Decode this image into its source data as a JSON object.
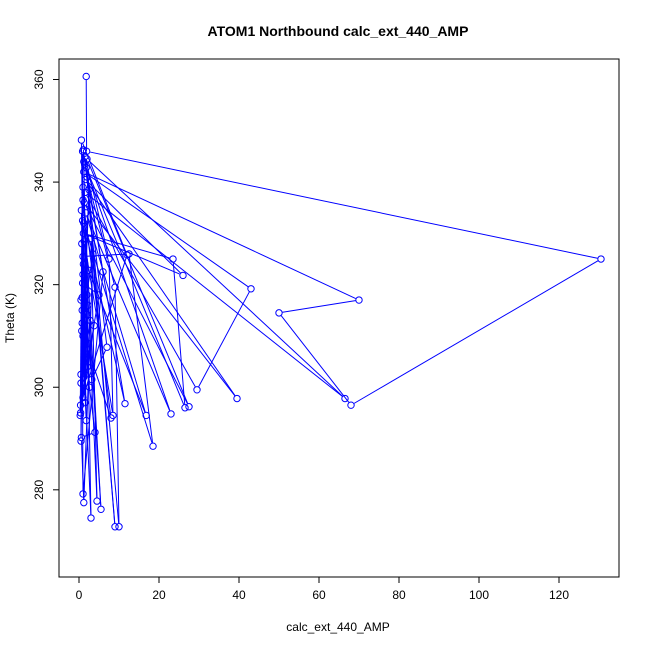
{
  "chart_data": {
    "type": "scatter",
    "title": "ATOM1 Northbound calc_ext_440_AMP",
    "xlabel": "calc_ext_440_AMP",
    "ylabel": "Theta (K)",
    "xlim": [
      -5,
      135
    ],
    "ylim": [
      263,
      364
    ],
    "xticks": [
      0,
      20,
      40,
      60,
      80,
      100,
      120
    ],
    "yticks": [
      280,
      300,
      320,
      340,
      360
    ],
    "grid": false,
    "legend": "none",
    "style": "points connected by lines (type='b')",
    "series": [
      {
        "color": "#0000ff",
        "points": [
          [
            1.8,
            360.6
          ],
          [
            1.9,
            346.0
          ],
          [
            130.5,
            325.0
          ],
          [
            68.0,
            296.5
          ],
          [
            50.0,
            314.5
          ],
          [
            70.0,
            317.0
          ],
          [
            1.2,
            342.0
          ],
          [
            43.0,
            319.2
          ],
          [
            29.5,
            299.5
          ],
          [
            1.5,
            338.0
          ],
          [
            66.5,
            297.8
          ],
          [
            2.0,
            344.5
          ],
          [
            27.5,
            296.2
          ],
          [
            1.3,
            336.0
          ],
          [
            39.5,
            297.8
          ],
          [
            1.6,
            340.5
          ],
          [
            26.0,
            321.8
          ],
          [
            1.1,
            330.0
          ],
          [
            23.5,
            325.0
          ],
          [
            26.5,
            296.0
          ],
          [
            1.4,
            343.5
          ],
          [
            23.0,
            294.8
          ],
          [
            1.7,
            334.0
          ],
          [
            16.8,
            294.5
          ],
          [
            1.0,
            325.5
          ],
          [
            12.5,
            326.0
          ],
          [
            18.5,
            288.5
          ],
          [
            1.2,
            332.0
          ],
          [
            11.5,
            296.8
          ],
          [
            2.0,
            341.0
          ],
          [
            9.0,
            319.5
          ],
          [
            10.0,
            272.8
          ],
          [
            1.5,
            345.0
          ],
          [
            7.5,
            325.0
          ],
          [
            8.5,
            294.5
          ],
          [
            1.3,
            328.5
          ],
          [
            5.5,
            276.2
          ],
          [
            1.0,
            339.0
          ],
          [
            4.5,
            277.8
          ],
          [
            3.0,
            329.0
          ],
          [
            9.0,
            272.8
          ],
          [
            1.8,
            342.8
          ],
          [
            6.0,
            322.5
          ],
          [
            1.0,
            279.2
          ],
          [
            0.8,
            312.5
          ],
          [
            3.5,
            326.0
          ],
          [
            1.2,
            277.5
          ],
          [
            0.6,
            290.2
          ],
          [
            4.0,
            291.2
          ],
          [
            1.0,
            310.0
          ],
          [
            3.0,
            274.5
          ],
          [
            2.0,
            318.0
          ],
          [
            0.4,
            295.0
          ],
          [
            2.5,
            338.5
          ],
          [
            0.5,
            302.5
          ],
          [
            0.9,
            346.0
          ],
          [
            0.3,
            294.5
          ],
          [
            2.2,
            316.0
          ],
          [
            0.7,
            311.0
          ],
          [
            8.0,
            294.0
          ],
          [
            1.0,
            336.5
          ],
          [
            0.5,
            289.5
          ],
          [
            0.9,
            320.3
          ],
          [
            5.0,
            318.0
          ],
          [
            0.4,
            296.5
          ],
          [
            12.0,
            325.8
          ],
          [
            0.6,
            348.2
          ],
          [
            1.0,
            322.0
          ],
          [
            3.2,
            301.5
          ],
          [
            7.0,
            307.8
          ],
          [
            1.1,
            346.3
          ],
          [
            2.1,
            304.0
          ],
          [
            0.8,
            317.5
          ],
          [
            1.5,
            309.0
          ],
          [
            0.5,
            300.8
          ],
          [
            2.8,
            313.0
          ],
          [
            1.3,
            305.5
          ],
          [
            0.6,
            334.5
          ],
          [
            2.4,
            322.8
          ],
          [
            1.2,
            302.0
          ],
          [
            0.8,
            315.0
          ],
          [
            3.8,
            312.0
          ],
          [
            1.0,
            298.0
          ],
          [
            1.6,
            306.5
          ],
          [
            0.9,
            332.5
          ],
          [
            2.6,
            300.0
          ],
          [
            1.4,
            319.0
          ],
          [
            0.5,
            317.0
          ],
          [
            1.8,
            293.5
          ],
          [
            1.1,
            324.0
          ],
          [
            2.3,
            308.5
          ],
          [
            0.7,
            328.0
          ],
          [
            1.5,
            297.0
          ],
          [
            1.9,
            314.2
          ],
          [
            1.2,
            344.0
          ]
        ]
      }
    ]
  }
}
